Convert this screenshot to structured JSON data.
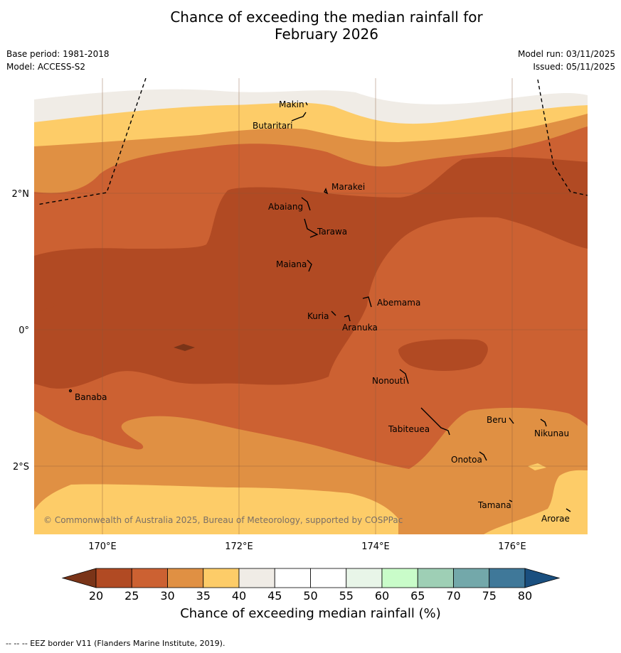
{
  "title_line1": "Chance of exceeding the median rainfall for",
  "title_line2": "February 2026",
  "base_period": "Base period: 1981-2018",
  "model": "Model: ACCESS-S2",
  "model_run": "Model run: 03/11/2025",
  "issued": "Issued: 05/11/2025",
  "copyright": "© Commonwealth of Australia 2025, Bureau of Meteorology, supported by COSPPac",
  "footnote": "--  --  -- EEZ border V11 (Flanders Marine Institute, 2019).",
  "x_ticks": [
    "170°E",
    "172°E",
    "174°E",
    "176°E"
  ],
  "y_ticks": [
    "2°N",
    "0°",
    "2°S"
  ],
  "places": [
    "Makin",
    "Butaritari",
    "Marakei",
    "Abaiang",
    "Tarawa",
    "Maiana",
    "Abemama",
    "Kuria",
    "Aranuka",
    "Banaba",
    "Nonouti",
    "Tabiteuea",
    "Beru",
    "Nikunau",
    "Onotoa",
    "Tamana",
    "Arorae"
  ],
  "colorbar": {
    "label": "Chance of exceeding median rainfall (%)",
    "ticks": [
      "20",
      "25",
      "30",
      "35",
      "40",
      "45",
      "50",
      "55",
      "60",
      "65",
      "70",
      "75",
      "80"
    ],
    "colors": [
      "#7a3418",
      "#b14a23",
      "#cc6132",
      "#e09043",
      "#fdcc68",
      "#f0ece6",
      "#ffffff",
      "#ffffff",
      "#e8f5e8",
      "#c9fcc9",
      "#9ecfb5",
      "#73a8aa",
      "#3f7899",
      "#1a4f7f"
    ]
  }
}
